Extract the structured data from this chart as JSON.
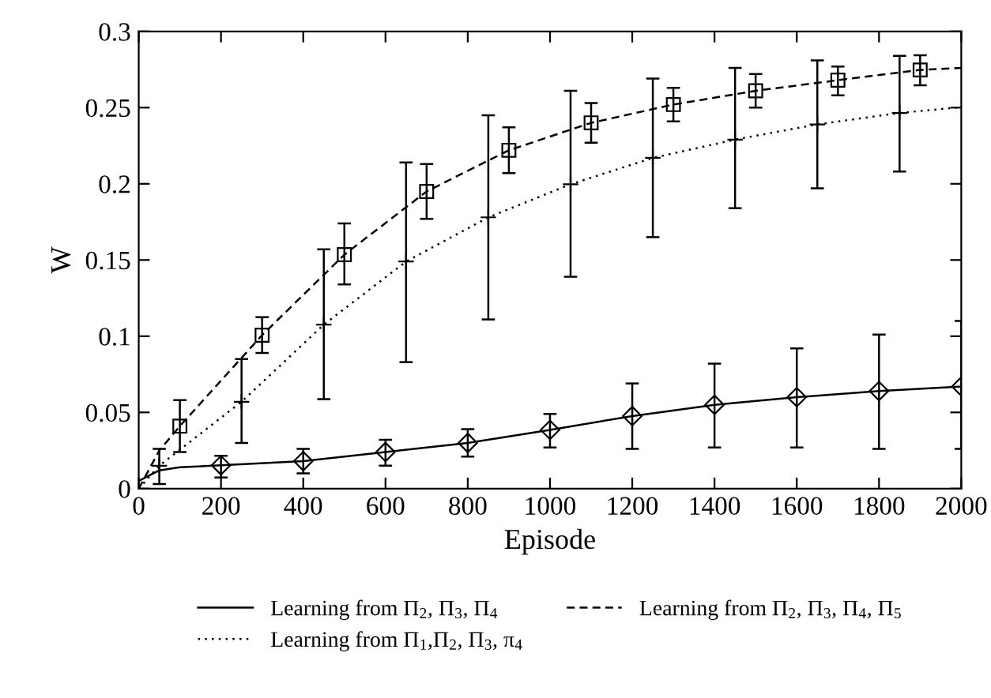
{
  "chart_data": {
    "type": "line",
    "xlabel": "Episode",
    "ylabel": "W",
    "xlim": [
      0,
      2000
    ],
    "ylim": [
      0,
      0.3
    ],
    "xticks": [
      0,
      200,
      400,
      600,
      800,
      1000,
      1200,
      1400,
      1600,
      1800,
      2000
    ],
    "yticks": [
      0,
      0.05,
      0.1,
      0.15,
      0.2,
      0.25,
      0.3
    ],
    "grid": false,
    "legend": "bottom",
    "series": [
      {
        "name": "Learning from Π$_{2}$, Π$_{3}$, Π$_{4}$",
        "color": "#000000",
        "line_style": "solid",
        "marker": "diamond",
        "x": [
          0,
          50,
          100,
          200,
          400,
          600,
          800,
          1000,
          1200,
          1400,
          1600,
          1800,
          2000
        ],
        "values": [
          0.005,
          0.012,
          0.014,
          0.0153,
          0.018,
          0.024,
          0.03,
          0.0385,
          0.0476,
          0.055,
          0.06,
          0.064,
          0.067
        ],
        "errors": [
          null,
          null,
          null,
          [
            0.0073,
            0.0215
          ],
          [
            0.01,
            0.026
          ],
          [
            0.015,
            0.032
          ],
          [
            0.021,
            0.039
          ],
          [
            0.027,
            0.049
          ],
          [
            0.026,
            0.069
          ],
          [
            0.027,
            0.082
          ],
          [
            0.027,
            0.092
          ],
          [
            0.026,
            0.101
          ],
          [
            0.026,
            0.11
          ]
        ]
      },
      {
        "name": "Learning from Π$_{1}$,Π$_{2}$, Π$_{3}$, π$_{4}$",
        "color": "#000000",
        "line_style": "dotted",
        "marker": "cross",
        "x": [
          0,
          50,
          250,
          450,
          650,
          850,
          1050,
          1250,
          1450,
          1650,
          1850,
          2000
        ],
        "values": [
          0.0,
          0.015,
          0.057,
          0.1076,
          0.149,
          0.178,
          0.1997,
          0.217,
          0.229,
          0.239,
          0.2465,
          0.2503
        ],
        "errors": [
          null,
          [
            0.003,
            0.026
          ],
          [
            0.03,
            0.085
          ],
          [
            0.0587,
            0.157
          ],
          [
            0.083,
            0.214
          ],
          [
            0.111,
            0.245
          ],
          [
            0.139,
            0.261
          ],
          [
            0.165,
            0.269
          ],
          [
            0.184,
            0.276
          ],
          [
            0.197,
            0.281
          ],
          [
            0.208,
            0.284
          ],
          null
        ]
      },
      {
        "name": "Learning from Π$_{2}$, Π$_{3}$, Π$_{4}$, Π$_{5}$",
        "color": "#000000",
        "line_style": "dashed",
        "marker": "square",
        "x": [
          0,
          50,
          100,
          300,
          500,
          700,
          900,
          1100,
          1300,
          1500,
          1700,
          1900,
          2000
        ],
        "values": [
          0.0,
          0.025,
          0.041,
          0.1007,
          0.1535,
          0.195,
          0.222,
          0.24,
          0.252,
          0.261,
          0.268,
          0.2747,
          0.276
        ],
        "errors": [
          null,
          null,
          [
            0.024,
            0.058
          ],
          [
            0.089,
            0.1125
          ],
          [
            0.134,
            0.174
          ],
          [
            0.177,
            0.213
          ],
          [
            0.207,
            0.237
          ],
          [
            0.227,
            0.253
          ],
          [
            0.241,
            0.263
          ],
          [
            0.25,
            0.272
          ],
          [
            0.258,
            0.277
          ],
          [
            0.2646,
            0.2844
          ],
          null
        ]
      }
    ]
  }
}
